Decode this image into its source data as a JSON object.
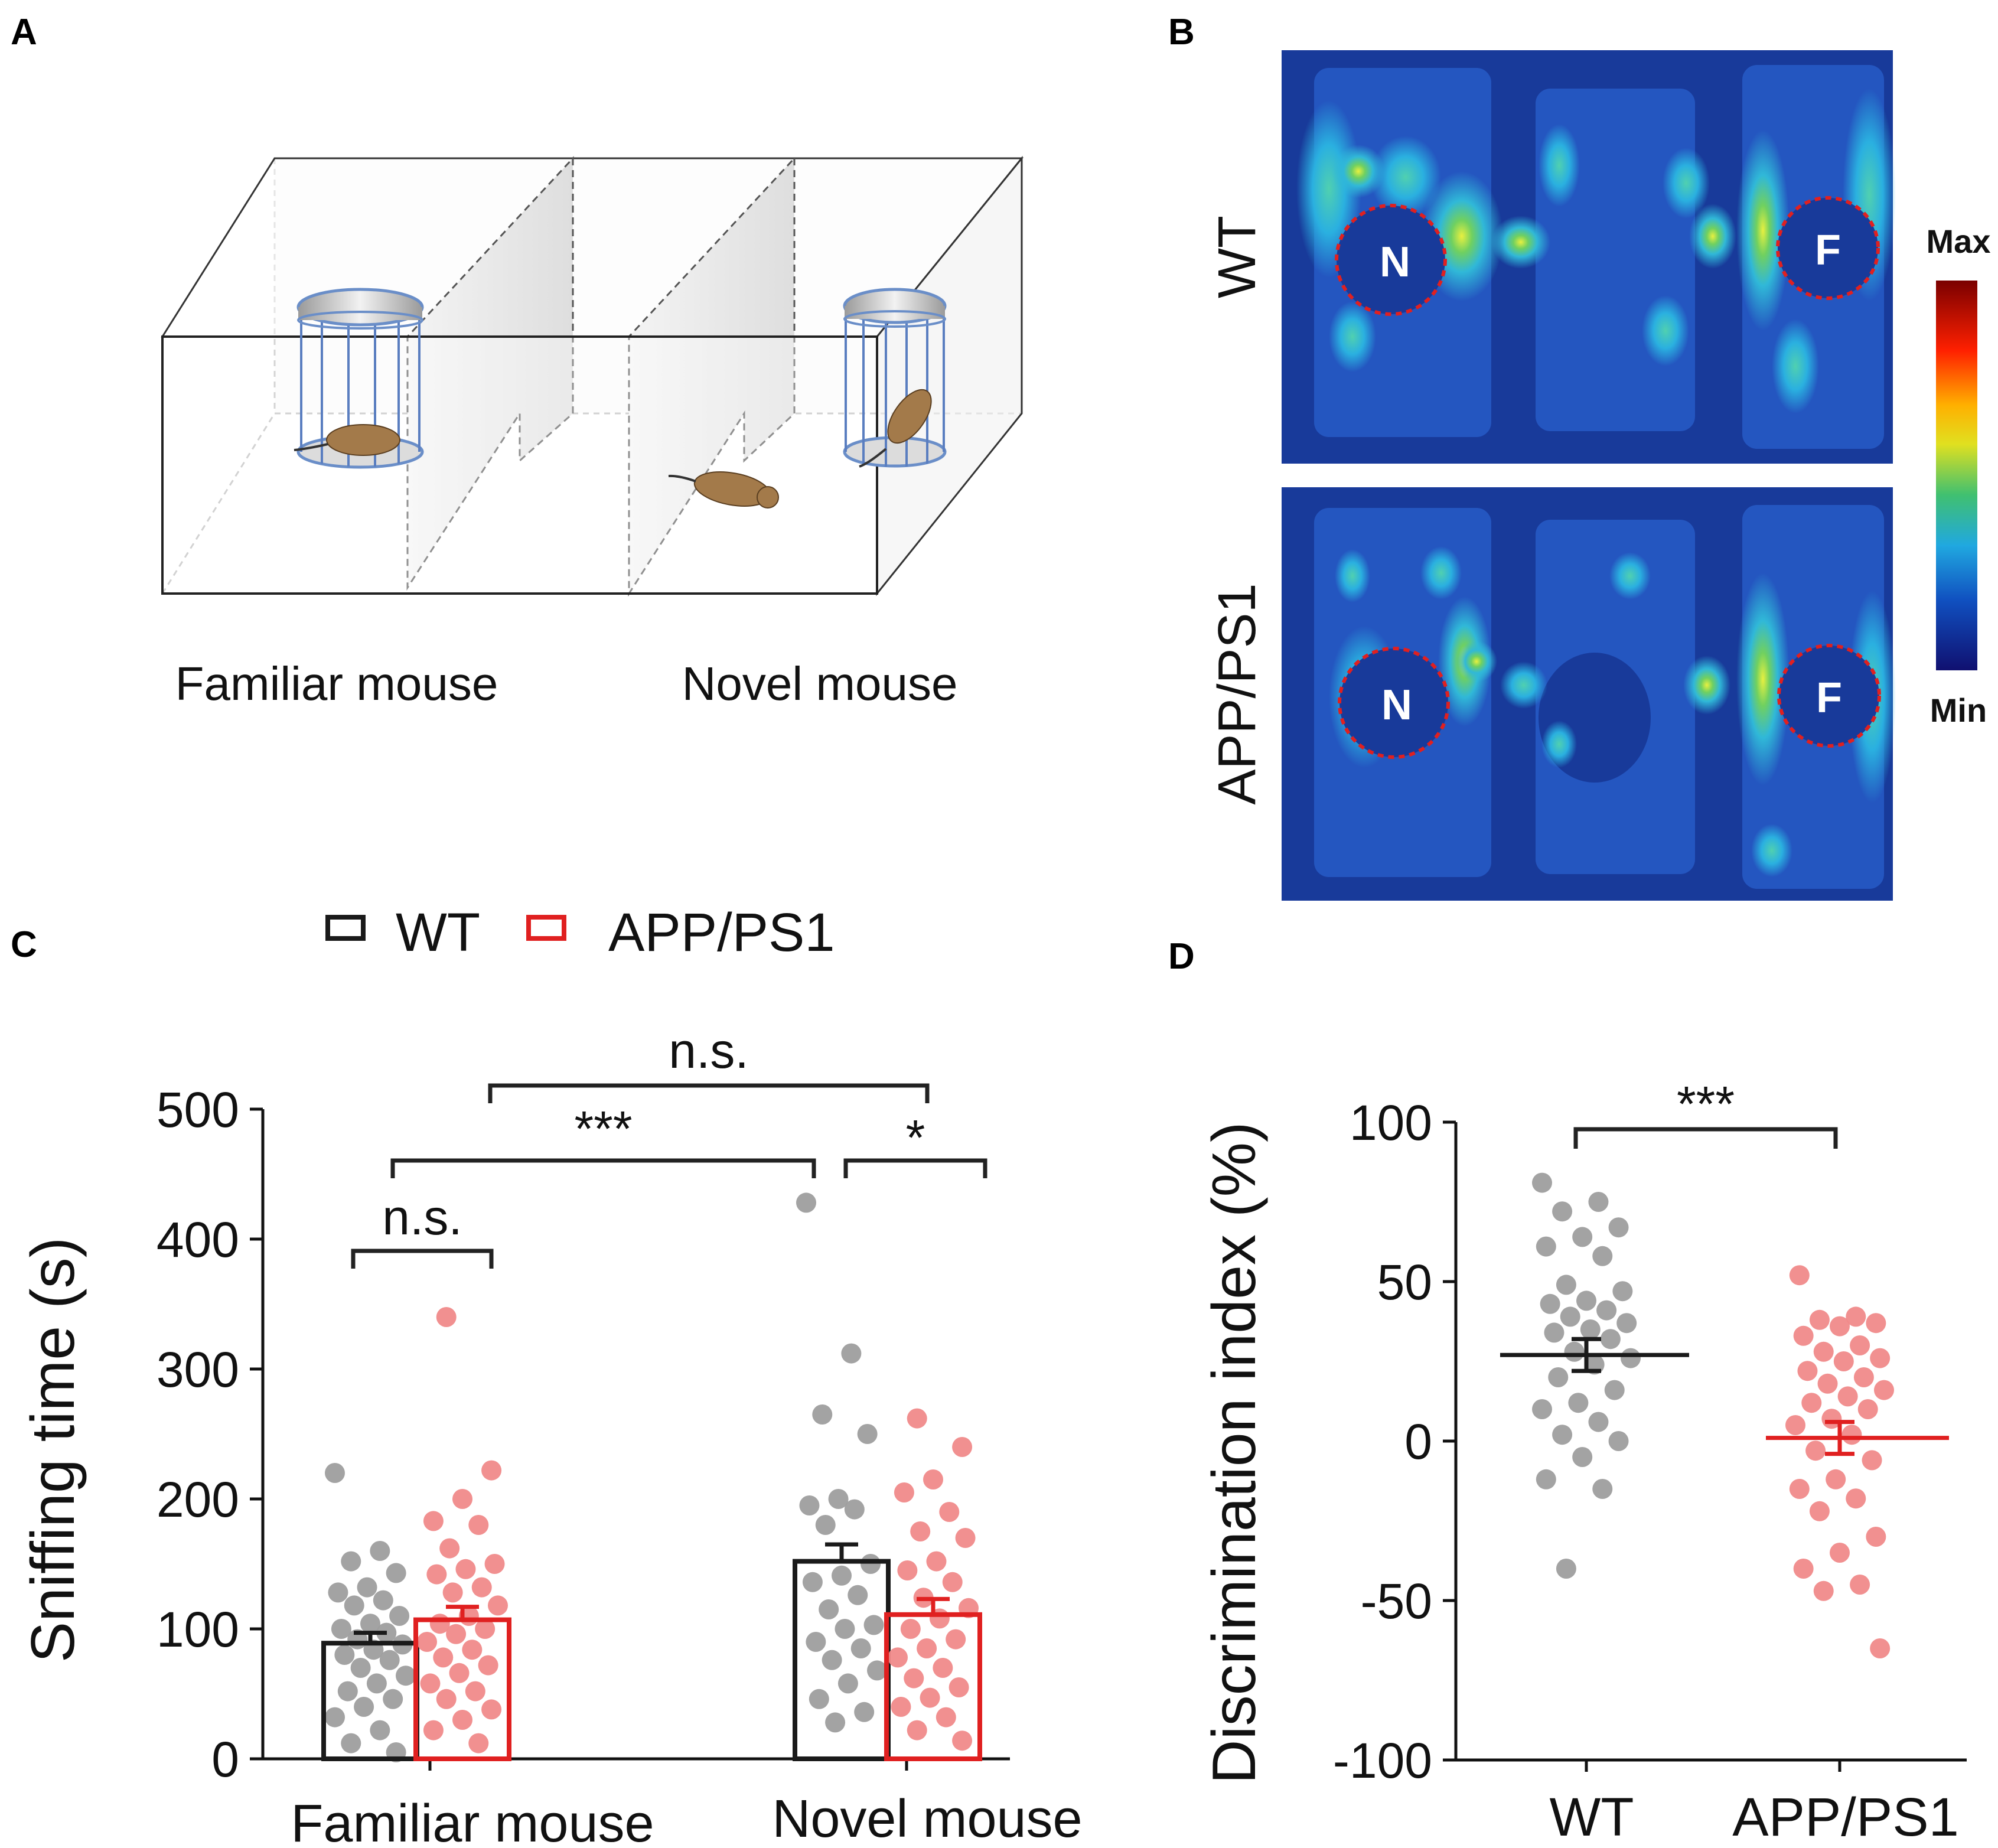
{
  "panels": {
    "a": {
      "letter": "A",
      "labels": [
        "Familiar mouse",
        "Novel mouse"
      ]
    },
    "b": {
      "letter": "B",
      "rows": [
        "WT",
        "APP/PS1"
      ],
      "zone_labels": [
        "N",
        "F"
      ],
      "colorbar": {
        "max_label": "Max",
        "min_label": "Min"
      }
    },
    "c": {
      "letter": "C"
    },
    "d": {
      "letter": "D"
    }
  },
  "colors": {
    "wt": "#1a1a1a",
    "app": "#e02020",
    "wt_points": "#9e9e9e",
    "app_points": "#f08a8a",
    "heat_bg": "#183a9a",
    "zone_circle": "#e02020"
  },
  "chart_data": [
    {
      "id": "C",
      "type": "bar",
      "title": "",
      "ylabel": "Sniffing time (s)",
      "xlabel": "",
      "ylim": [
        0,
        500
      ],
      "yticks": [
        0,
        100,
        200,
        300,
        400,
        500
      ],
      "categories": [
        "Familiar mouse",
        "Novel mouse"
      ],
      "legend": [
        "WT",
        "APP/PS1"
      ],
      "series": [
        {
          "name": "WT",
          "means": [
            89,
            152
          ],
          "sem": [
            8,
            13
          ],
          "points": [
            [
              220,
              160,
              152,
              143,
              132,
              128,
              122,
              118,
              110,
              104,
              100,
              97,
              92,
              88,
              84,
              80,
              76,
              70,
              64,
              58,
              52,
              46,
              40,
              32,
              22,
              12,
              5
            ],
            [
              428,
              312,
              265,
              250,
              200,
              195,
              192,
              180,
              150,
              141,
              136,
              126,
              115,
              103,
              100,
              90,
              85,
              76,
              68,
              58,
              46,
              36,
              28
            ]
          ]
        },
        {
          "name": "APP/PS1",
          "means": [
            107,
            111
          ],
          "sem": [
            10,
            12
          ],
          "points": [
            [
              340,
              222,
              200,
              183,
              180,
              162,
              150,
              146,
              142,
              132,
              128,
              118,
              110,
              104,
              100,
              96,
              90,
              84,
              78,
              72,
              66,
              58,
              52,
              46,
              38,
              30,
              22,
              12
            ],
            [
              262,
              240,
              215,
              205,
              190,
              175,
              170,
              152,
              145,
              136,
              124,
              116,
              108,
              100,
              92,
              85,
              78,
              70,
              62,
              55,
              47,
              40,
              32,
              22,
              14
            ]
          ]
        }
      ],
      "comparisons": [
        {
          "label": "n.s.",
          "from": "WT Familiar mouse",
          "to": "APP/PS1 Familiar mouse"
        },
        {
          "label": "***",
          "from": "WT Familiar mouse",
          "to": "WT Novel mouse"
        },
        {
          "label": "*",
          "from": "WT Novel mouse",
          "to": "APP/PS1 Novel mouse"
        },
        {
          "label": "n.s.",
          "from": "APP/PS1 Familiar mouse",
          "to": "APP/PS1 Novel mouse"
        }
      ]
    },
    {
      "id": "D",
      "type": "scatter",
      "title": "",
      "ylabel": "Discrimination index (%)",
      "xlabel": "",
      "ylim": [
        -100,
        100
      ],
      "yticks": [
        -100,
        -50,
        0,
        50,
        100
      ],
      "categories": [
        "WT",
        "APP/PS1"
      ],
      "means": [
        27,
        1
      ],
      "sem": [
        5,
        5
      ],
      "points": [
        [
          81,
          75,
          72,
          67,
          64,
          61,
          58,
          49,
          47,
          44,
          43,
          41,
          39,
          37,
          35,
          34,
          32,
          28,
          26,
          24,
          20,
          16,
          12,
          10,
          6,
          2,
          0,
          -5,
          -12,
          -15,
          -40
        ],
        [
          52,
          39,
          38,
          37,
          36,
          33,
          30,
          28,
          26,
          25,
          22,
          20,
          18,
          16,
          14,
          12,
          10,
          7,
          5,
          2,
          -3,
          -6,
          -12,
          -15,
          -18,
          -22,
          -30,
          -35,
          -40,
          -45,
          -47,
          -65
        ]
      ],
      "comparisons": [
        {
          "label": "***",
          "from": "WT",
          "to": "APP/PS1"
        }
      ]
    }
  ]
}
